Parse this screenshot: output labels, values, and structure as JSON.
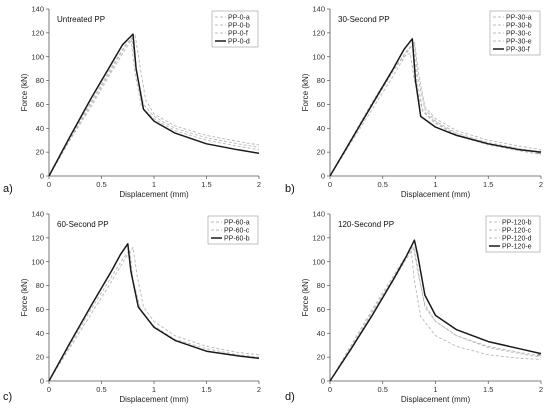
{
  "chart_data": [
    {
      "type": "line",
      "panel_label": "a)",
      "title": "Untreated PP",
      "xlabel": "Displacement (mm)",
      "ylabel": "Force (kN)",
      "xlim": [
        0,
        2
      ],
      "ylim": [
        0,
        140
      ],
      "xticks": [
        0,
        0.5,
        1,
        1.5,
        2
      ],
      "yticks": [
        0,
        20,
        40,
        60,
        80,
        100,
        120,
        140
      ],
      "legend": "top-right",
      "series": [
        {
          "name": "PP-0-a",
          "style": "dashed",
          "x": [
            0,
            0.2,
            0.4,
            0.6,
            0.74,
            0.82,
            0.86,
            0.92,
            1.0,
            1.2,
            1.5,
            1.8,
            2.0
          ],
          "y": [
            0,
            30,
            58,
            88,
            108,
            118,
            96,
            64,
            52,
            42,
            34,
            29,
            26
          ]
        },
        {
          "name": "PP-0-b",
          "style": "dashed",
          "x": [
            0,
            0.2,
            0.4,
            0.6,
            0.72,
            0.79,
            0.83,
            0.9,
            1.0,
            1.2,
            1.5,
            1.8,
            2.0
          ],
          "y": [
            0,
            31,
            60,
            90,
            108,
            116,
            90,
            60,
            50,
            40,
            32,
            27,
            24
          ]
        },
        {
          "name": "PP-0-f",
          "style": "dashed",
          "x": [
            0,
            0.2,
            0.4,
            0.6,
            0.72,
            0.78,
            0.82,
            0.88,
            1.0,
            1.2,
            1.5,
            1.8,
            2.0
          ],
          "y": [
            0,
            32,
            62,
            92,
            109,
            115,
            86,
            58,
            48,
            38,
            30,
            25,
            22
          ]
        },
        {
          "name": "PP-0-d",
          "style": "solid",
          "x": [
            0,
            0.2,
            0.4,
            0.6,
            0.7,
            0.8,
            0.83,
            0.9,
            1.0,
            1.2,
            1.5,
            1.8,
            2.0
          ],
          "y": [
            0,
            33,
            65,
            95,
            110,
            119,
            90,
            56,
            46,
            36,
            27,
            22,
            19
          ]
        }
      ]
    },
    {
      "type": "line",
      "panel_label": "b)",
      "title": "30-Second PP",
      "xlabel": "Displacement (mm)",
      "ylabel": "Force (kN)",
      "xlim": [
        0,
        2
      ],
      "ylim": [
        0,
        140
      ],
      "xticks": [
        0,
        0.5,
        1,
        1.5,
        2
      ],
      "yticks": [
        0,
        20,
        40,
        60,
        80,
        100,
        120,
        140
      ],
      "legend": "top-right",
      "end_marker": {
        "x": 1.98,
        "y": 20,
        "symbol": "×"
      },
      "series": [
        {
          "name": "PP-30-a",
          "style": "dashed",
          "x": [
            0,
            0.2,
            0.4,
            0.6,
            0.72,
            0.8,
            0.84,
            0.9,
            1.0,
            1.2,
            1.5,
            1.8,
            2.0
          ],
          "y": [
            0,
            28,
            56,
            84,
            102,
            113,
            86,
            58,
            48,
            38,
            30,
            25,
            22
          ]
        },
        {
          "name": "PP-30-b",
          "style": "dashed",
          "x": [
            0,
            0.2,
            0.4,
            0.6,
            0.72,
            0.8,
            0.83,
            0.9,
            1.0,
            1.2,
            1.5,
            1.8,
            2.0
          ],
          "y": [
            0,
            30,
            60,
            88,
            104,
            112,
            84,
            56,
            46,
            36,
            28,
            23,
            20
          ]
        },
        {
          "name": "PP-30-c",
          "style": "dashed",
          "x": [
            0,
            0.2,
            0.4,
            0.6,
            0.7,
            0.76,
            0.8,
            0.88,
            1.0,
            1.2,
            1.5,
            1.8,
            2.0
          ],
          "y": [
            0,
            31,
            62,
            90,
            100,
            103,
            80,
            54,
            44,
            34,
            26,
            21,
            18
          ]
        },
        {
          "name": "PP-30-e",
          "style": "dashed",
          "x": [
            0,
            0.2,
            0.4,
            0.6,
            0.72,
            0.79,
            0.82,
            0.88,
            1.0,
            1.2,
            1.5,
            1.8,
            2.0
          ],
          "y": [
            0,
            30,
            59,
            88,
            104,
            110,
            82,
            55,
            45,
            35,
            27,
            22,
            19
          ]
        },
        {
          "name": "PP-30-f",
          "style": "solid",
          "x": [
            0,
            0.2,
            0.4,
            0.6,
            0.7,
            0.78,
            0.81,
            0.86,
            1.0,
            1.2,
            1.5,
            1.8,
            2.0
          ],
          "y": [
            0,
            30,
            60,
            90,
            106,
            115,
            80,
            50,
            41,
            34,
            27,
            22,
            20
          ]
        }
      ]
    },
    {
      "type": "line",
      "panel_label": "c)",
      "title": "60-Second PP",
      "xlabel": "Displacement (mm)",
      "ylabel": "Force (kN)",
      "xlim": [
        0,
        2
      ],
      "ylim": [
        0,
        140
      ],
      "xticks": [
        0,
        0.5,
        1,
        1.5,
        2
      ],
      "yticks": [
        0,
        20,
        40,
        60,
        80,
        100,
        120,
        140
      ],
      "legend": "top-right",
      "series": [
        {
          "name": "PP-60-a",
          "style": "dashed",
          "x": [
            0,
            0.2,
            0.4,
            0.6,
            0.72,
            0.8,
            0.84,
            0.9,
            1.0,
            1.2,
            1.5,
            1.8,
            2.0
          ],
          "y": [
            0,
            28,
            56,
            84,
            102,
            112,
            88,
            62,
            50,
            38,
            29,
            24,
            22
          ]
        },
        {
          "name": "PP-60-c",
          "style": "dashed",
          "x": [
            0,
            0.2,
            0.4,
            0.6,
            0.7,
            0.77,
            0.8,
            0.88,
            1.0,
            1.2,
            1.5,
            1.8,
            2.0
          ],
          "y": [
            0,
            30,
            60,
            88,
            102,
            110,
            84,
            58,
            46,
            35,
            27,
            22,
            20
          ]
        },
        {
          "name": "PP-60-b",
          "style": "solid",
          "x": [
            0,
            0.2,
            0.4,
            0.6,
            0.68,
            0.75,
            0.78,
            0.85,
            1.0,
            1.2,
            1.5,
            1.8,
            2.0
          ],
          "y": [
            0,
            32,
            63,
            93,
            106,
            115,
            92,
            62,
            45,
            34,
            25,
            21,
            19
          ]
        }
      ]
    },
    {
      "type": "line",
      "panel_label": "d)",
      "title": "120-Second PP",
      "xlabel": "Displacement (mm)",
      "ylabel": "Force (kN)",
      "xlim": [
        0,
        2
      ],
      "ylim": [
        0,
        140
      ],
      "xticks": [
        0,
        0.5,
        1,
        1.5,
        2
      ],
      "yticks": [
        0,
        20,
        40,
        60,
        80,
        100,
        120,
        140
      ],
      "legend": "top-right",
      "end_marker": {
        "x": 1.98,
        "y": 23,
        "symbol": "×"
      },
      "series": [
        {
          "name": "PP-120-b",
          "style": "dashed",
          "x": [
            0,
            0.2,
            0.4,
            0.6,
            0.72,
            0.8,
            0.84,
            0.9,
            1.0,
            1.2,
            1.5,
            1.8,
            2.0
          ],
          "y": [
            0,
            28,
            56,
            84,
            102,
            112,
            90,
            62,
            50,
            38,
            29,
            24,
            21
          ]
        },
        {
          "name": "PP-120-c",
          "style": "dashed",
          "x": [
            0,
            0.2,
            0.4,
            0.6,
            0.7,
            0.77,
            0.8,
            0.86,
            1.0,
            1.2,
            1.5,
            1.8,
            2.0
          ],
          "y": [
            0,
            30,
            60,
            88,
            102,
            110,
            84,
            54,
            38,
            29,
            22,
            19,
            18
          ]
        },
        {
          "name": "PP-120-d",
          "style": "dashed",
          "x": [
            0,
            0.2,
            0.4,
            0.6,
            0.72,
            0.79,
            0.83,
            0.9,
            1.0,
            1.2,
            1.5,
            1.8,
            2.0
          ],
          "y": [
            0,
            28,
            58,
            86,
            104,
            113,
            92,
            64,
            50,
            38,
            28,
            23,
            20
          ]
        },
        {
          "name": "PP-120-e",
          "style": "solid",
          "x": [
            0,
            0.2,
            0.4,
            0.6,
            0.72,
            0.8,
            0.83,
            0.9,
            1.0,
            1.2,
            1.5,
            1.8,
            2.0
          ],
          "y": [
            0,
            27,
            55,
            85,
            104,
            118,
            106,
            72,
            55,
            43,
            33,
            27,
            23
          ]
        }
      ]
    }
  ]
}
